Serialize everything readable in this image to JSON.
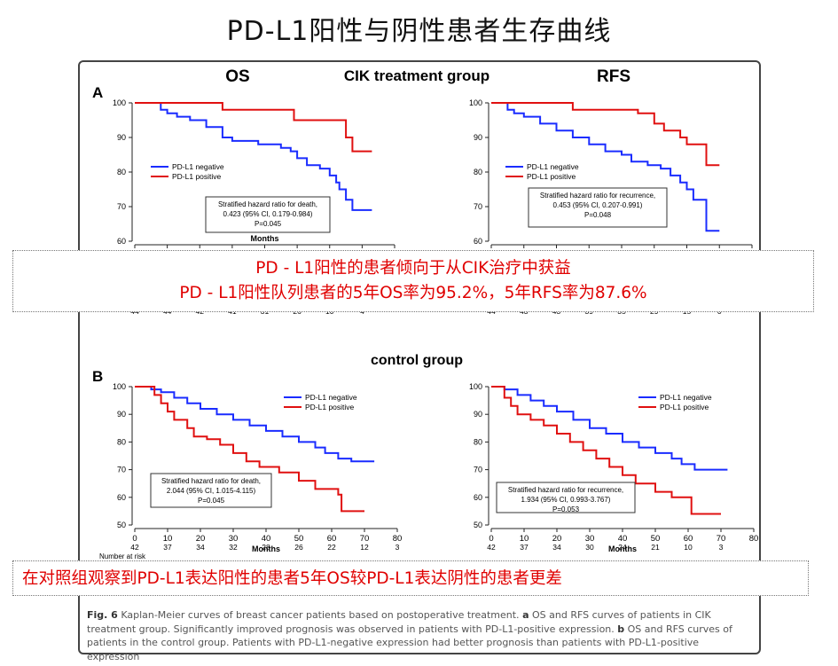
{
  "page_title": "PD-L1阳性与阴性患者生存曲线",
  "section_a": {
    "letter": "A",
    "title": "CIK treatment group",
    "os_label": "OS",
    "rfs_label": "RFS"
  },
  "section_b": {
    "letter": "B",
    "title": "control group"
  },
  "highlights": {
    "line1": "PD - L1阳性的患者倾向于从CIK治疗中获益",
    "line2": "PD - L1阳性队列患者的5年OS率为95.2%，5年RFS率为87.6%",
    "line3": "在对照组观察到PD-L1表达阳性的患者5年OS较PD-L1表达阴性的患者更差"
  },
  "caption": {
    "fig": "Fig. 6",
    "s1": " Kaplan-Meier curves of breast cancer patients based on postoperative treatment. ",
    "a": "a",
    "s2": " OS and RFS curves of patients in CIK treatment group. Significantly improved prognosis was observed in patients with PD-L1-positive expression. ",
    "b": "b",
    "s3": " OS and RFS curves of patients in the control group. Patients with PD-L1-negative expression had better prognosis than patients with PD-L1-positive expression"
  },
  "colors": {
    "negative": "#1a2cff",
    "positive": "#e01010",
    "highlight": "#e00000"
  },
  "chart_data": [
    {
      "id": "A-OS",
      "type": "line",
      "title": "OS",
      "xlabel": "Months",
      "ylabel": "",
      "xlim": [
        0,
        80
      ],
      "ylim": [
        60,
        100
      ],
      "yticks": [
        60,
        70,
        80,
        90,
        100
      ],
      "xticks": [],
      "legend": [
        "PD-L1 negative",
        "PD-L1 positive"
      ],
      "legend_position": "middle-left",
      "annotation": [
        "Stratified hazard ratio for death,",
        "0.423 (95% CI, 0.179-0.984)",
        "P=0.045"
      ],
      "risk_numbers": [
        "44",
        "44",
        "42",
        "41",
        "31",
        "26",
        "10",
        "4"
      ],
      "series": [
        {
          "name": "PD-L1 negative",
          "x": [
            0,
            8,
            10,
            13,
            17,
            22,
            27,
            30,
            38,
            45,
            48,
            50,
            53,
            57,
            60,
            62,
            63,
            65,
            67,
            73
          ],
          "y": [
            100,
            98,
            97,
            96,
            95,
            93,
            90,
            89,
            88,
            87,
            86,
            84,
            82,
            81,
            79,
            77,
            75,
            72,
            69,
            69
          ]
        },
        {
          "name": "PD-L1 positive",
          "x": [
            0,
            27,
            49,
            64,
            65,
            67,
            73
          ],
          "y": [
            100,
            98,
            95,
            95,
            90,
            86,
            86
          ]
        }
      ]
    },
    {
      "id": "A-RFS",
      "type": "line",
      "title": "RFS",
      "xlabel": "",
      "ylabel": "",
      "xlim": [
        0,
        80
      ],
      "ylim": [
        60,
        100
      ],
      "yticks": [
        60,
        70,
        80,
        90,
        100
      ],
      "xticks": [
        0,
        10,
        20,
        30,
        40,
        50,
        60,
        70,
        80
      ],
      "legend": [
        "PD-L1 negative",
        "PD-L1 positive"
      ],
      "legend_position": "middle-left",
      "annotation": [
        "Stratified hazard ratio for recurrence,",
        "0.453 (95% CI, 0.207-0.991)",
        "P=0.048"
      ],
      "risk_numbers": [
        "44",
        "43",
        "43",
        "39",
        "35",
        "29",
        "15",
        "0"
      ],
      "series": [
        {
          "name": "PD-L1 negative",
          "x": [
            0,
            5,
            7,
            10,
            15,
            20,
            25,
            30,
            35,
            40,
            43,
            48,
            52,
            55,
            58,
            60,
            62,
            65,
            66,
            68,
            70
          ],
          "y": [
            100,
            98,
            97,
            96,
            94,
            92,
            90,
            88,
            86,
            85,
            83,
            82,
            81,
            79,
            77,
            75,
            72,
            72,
            63,
            63,
            63
          ]
        },
        {
          "name": "PD-L1 positive",
          "x": [
            0,
            25,
            45,
            50,
            53,
            58,
            60,
            66,
            70
          ],
          "y": [
            100,
            98,
            97,
            94,
            92,
            90,
            88,
            82,
            82
          ]
        }
      ]
    },
    {
      "id": "B-OS",
      "type": "line",
      "title": "",
      "xlabel": "Months",
      "ylabel": "",
      "xlim": [
        0,
        80
      ],
      "ylim": [
        50,
        100
      ],
      "yticks": [
        50,
        60,
        70,
        80,
        90,
        100
      ],
      "xticks": [
        0,
        10,
        20,
        30,
        40,
        50,
        60,
        70,
        80
      ],
      "legend": [
        "PD-L1 negative",
        "PD-L1 positive"
      ],
      "legend_position": "top-right",
      "annotation": [
        "Stratified hazard ratio for death,",
        "2.044 (95% CI, 1.015-4.115)",
        "P=0.045"
      ],
      "risk_numbers": [
        "42",
        "37",
        "34",
        "32",
        "28",
        "26",
        "22",
        "12",
        "3"
      ],
      "risk_label": "Number at risk",
      "series": [
        {
          "name": "PD-L1 negative",
          "x": [
            0,
            5,
            8,
            12,
            16,
            20,
            25,
            30,
            35,
            40,
            45,
            50,
            55,
            58,
            62,
            66,
            73
          ],
          "y": [
            100,
            99,
            98,
            96,
            94,
            92,
            90,
            88,
            86,
            84,
            82,
            80,
            78,
            76,
            74,
            73,
            73
          ]
        },
        {
          "name": "PD-L1 positive",
          "x": [
            0,
            6,
            8,
            10,
            12,
            16,
            18,
            22,
            26,
            30,
            34,
            38,
            44,
            50,
            55,
            62,
            63,
            70
          ],
          "y": [
            100,
            97,
            94,
            91,
            88,
            85,
            82,
            81,
            79,
            76,
            73,
            71,
            69,
            66,
            63,
            61,
            55,
            55
          ]
        }
      ]
    },
    {
      "id": "B-RFS",
      "type": "line",
      "title": "",
      "xlabel": "Months",
      "ylabel": "",
      "xlim": [
        0,
        80
      ],
      "ylim": [
        50,
        100
      ],
      "yticks": [
        50,
        60,
        70,
        80,
        90,
        100
      ],
      "xticks": [
        0,
        10,
        20,
        30,
        40,
        50,
        60,
        70,
        80
      ],
      "legend": [
        "PD-L1 negative",
        "PD-L1 positive"
      ],
      "legend_position": "top-right",
      "annotation": [
        "Stratified hazard ratio for recurrence,",
        "1.934 (95% CI, 0.993-3.767)",
        "P=0.053"
      ],
      "risk_numbers": [
        "42",
        "37",
        "34",
        "30",
        "24",
        "21",
        "10",
        "3"
      ],
      "series": [
        {
          "name": "PD-L1 negative",
          "x": [
            0,
            4,
            8,
            12,
            16,
            20,
            25,
            30,
            35,
            40,
            45,
            50,
            55,
            58,
            62,
            66,
            72
          ],
          "y": [
            100,
            99,
            97,
            95,
            93,
            91,
            88,
            85,
            83,
            80,
            78,
            76,
            74,
            72,
            70,
            70,
            70
          ]
        },
        {
          "name": "PD-L1 positive",
          "x": [
            0,
            4,
            6,
            8,
            12,
            16,
            20,
            24,
            28,
            32,
            36,
            40,
            44,
            50,
            55,
            60,
            61,
            63,
            70
          ],
          "y": [
            100,
            96,
            93,
            90,
            88,
            86,
            83,
            80,
            77,
            74,
            71,
            68,
            65,
            62,
            60,
            60,
            54,
            54,
            54
          ]
        }
      ]
    }
  ]
}
